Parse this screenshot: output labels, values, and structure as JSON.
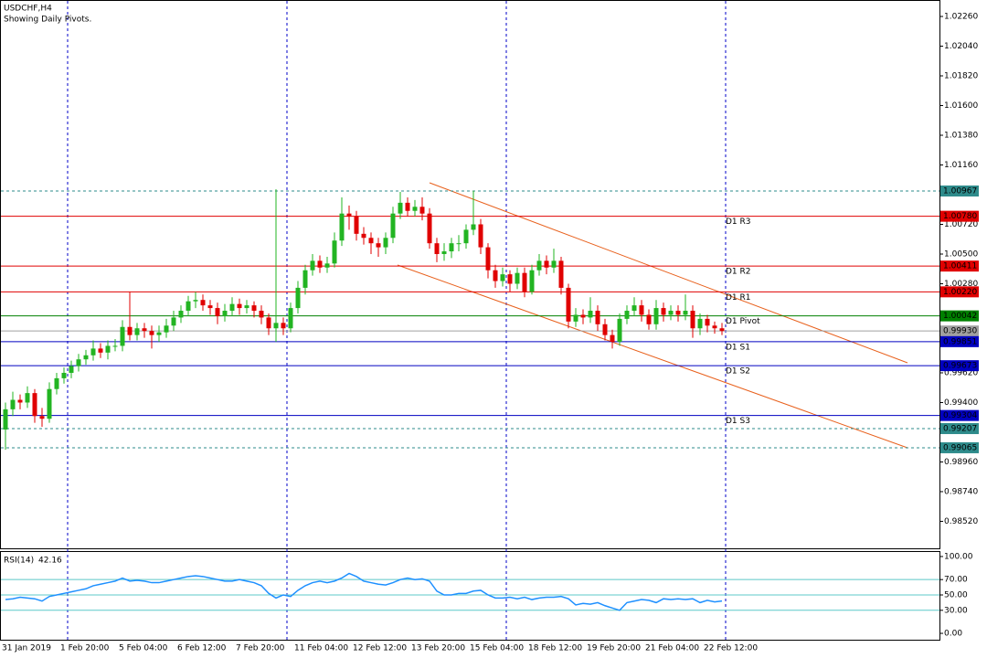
{
  "chart_data": {
    "type": "candlestick",
    "title": "USDCHF,H4",
    "subtitle": "Showing Daily Pivots.",
    "up_color": "#22b422",
    "down_color": "#e00000",
    "categories": [
      "31 Jan 2019",
      null,
      null,
      null,
      null,
      null,
      null,
      null,
      "1 Feb 20:00",
      null,
      null,
      null,
      null,
      null,
      null,
      null,
      "5 Feb 04:00",
      null,
      null,
      null,
      null,
      null,
      null,
      null,
      "6 Feb 12:00",
      null,
      null,
      null,
      null,
      null,
      null,
      null,
      "7 Feb 20:00",
      null,
      null,
      null,
      null,
      null,
      null,
      null,
      "11 Feb 04:00",
      null,
      null,
      null,
      null,
      null,
      null,
      null,
      "12 Feb 12:00",
      null,
      null,
      null,
      null,
      null,
      null,
      null,
      "13 Feb 20:00",
      null,
      null,
      null,
      null,
      null,
      null,
      null,
      "15 Feb 04:00",
      null,
      null,
      null,
      null,
      null,
      null,
      null,
      "18 Feb 12:00",
      null,
      null,
      null,
      null,
      null,
      null,
      null,
      "19 Feb 20:00",
      null,
      null,
      null,
      null,
      null,
      null,
      null,
      "21 Feb 04:00",
      null,
      null,
      null,
      null,
      null,
      null,
      null,
      "22 Feb 12:00",
      null,
      null
    ],
    "open": [
      0.992,
      0.9935,
      0.9942,
      0.994,
      0.9947,
      0.993,
      0.9928,
      0.995,
      0.9958,
      0.9962,
      0.9967,
      0.9972,
      0.9975,
      0.998,
      0.9977,
      0.9982,
      0.9982,
      0.9996,
      0.999,
      0.9995,
      0.9993,
      0.999,
      0.9992,
      0.9997,
      1.0003,
      1.0008,
      1.0015,
      1.0016,
      1.0012,
      1.001,
      1.0004,
      1.0008,
      1.0013,
      1.001,
      1.0012,
      1.0008,
      1.0003,
      0.9995,
      0.9999,
      0.9995,
      1.001,
      1.0025,
      1.0038,
      1.0045,
      1.004,
      1.0043,
      1.006,
      1.008,
      1.0078,
      1.0065,
      1.0062,
      1.0058,
      1.0055,
      1.0062,
      1.008,
      1.0088,
      1.0082,
      1.0085,
      1.008,
      1.0058,
      1.005,
      1.0052,
      1.0058,
      1.0058,
      1.0068,
      1.0072,
      1.0055,
      1.0038,
      1.003,
      1.0035,
      1.0028,
      1.0036,
      1.0022,
      1.0038,
      1.0045,
      1.004,
      1.0045,
      1.0025,
      1.0,
      1.0005,
      1.0003,
      1.0008,
      0.9998,
      0.999,
      0.9985,
      1.0002,
      1.0008,
      1.0012,
      1.0005,
      0.9998,
      1.001,
      1.0005,
      1.0008,
      1.0005,
      1.0008,
      0.9995,
      1.0002,
      0.9997,
      0.9995
    ],
    "high": [
      0.994,
      0.9948,
      0.9946,
      0.9952,
      0.995,
      0.9936,
      0.9955,
      0.9962,
      0.9966,
      0.9971,
      0.9976,
      0.9979,
      0.9986,
      0.9984,
      0.9986,
      0.9987,
      1.0001,
      1.0022,
      0.9999,
      0.9999,
      0.9997,
      0.9997,
      1.0002,
      1.0008,
      1.0012,
      1.0019,
      1.0022,
      1.002,
      1.0016,
      1.0014,
      1.0013,
      1.0018,
      1.0017,
      1.0016,
      1.0015,
      1.0012,
      1.0006,
      1.0098,
      1.0003,
      1.0014,
      1.003,
      1.0042,
      1.005,
      1.0049,
      1.0048,
      1.0066,
      1.0092,
      1.0086,
      1.0082,
      1.007,
      1.0066,
      1.0062,
      1.0066,
      1.0085,
      1.0096,
      1.0092,
      1.009,
      1.0092,
      1.0084,
      1.0062,
      1.0058,
      1.0062,
      1.0064,
      1.0072,
      1.0097,
      1.0076,
      1.0058,
      1.0042,
      1.004,
      1.0038,
      1.004,
      1.004,
      1.0042,
      1.005,
      1.0049,
      1.0054,
      1.0048,
      1.0028,
      1.001,
      1.0009,
      1.0018,
      1.0012,
      1.0002,
      0.9994,
      1.0006,
      1.0012,
      1.0018,
      1.0016,
      1.0009,
      1.0016,
      1.0014,
      1.0012,
      1.0012,
      1.002,
      1.0012,
      1.0006,
      1.0005,
      1.0,
      0.9999
    ],
    "low": [
      0.9905,
      0.993,
      0.9935,
      0.9936,
      0.9925,
      0.9922,
      0.9925,
      0.9946,
      0.9954,
      0.9958,
      0.9963,
      0.9968,
      0.9971,
      0.9973,
      0.9972,
      0.9978,
      0.9978,
      0.9986,
      0.9986,
      0.9988,
      0.998,
      0.9985,
      0.9988,
      0.9993,
      0.9999,
      1.0004,
      1.001,
      1.0008,
      1.0005,
      0.9998,
      1.0,
      1.0004,
      1.0005,
      1.0006,
      1.0003,
      0.9998,
      0.999,
      0.9985,
      0.999,
      0.9992,
      1.0006,
      1.002,
      1.0034,
      1.0036,
      1.0036,
      1.004,
      1.0056,
      1.0068,
      1.006,
      1.0057,
      1.005,
      1.0048,
      1.005,
      1.0058,
      1.0076,
      1.0078,
      1.0078,
      1.0075,
      1.0054,
      1.0044,
      1.0045,
      1.0047,
      1.0052,
      1.0054,
      1.0064,
      1.005,
      1.0032,
      1.0025,
      1.0026,
      1.0022,
      1.0024,
      1.0018,
      1.002,
      1.0034,
      1.0035,
      1.0036,
      1.002,
      0.9995,
      0.9996,
      0.9998,
      0.9999,
      0.9993,
      0.9986,
      0.998,
      0.9982,
      0.9998,
      1.0004,
      1.0,
      0.9994,
      0.9994,
      1.0,
      1.0001,
      1.0,
      1.0001,
      0.9988,
      0.999,
      0.9992,
      0.9991,
      0.999
    ],
    "close": [
      0.9935,
      0.9942,
      0.994,
      0.9947,
      0.993,
      0.9928,
      0.995,
      0.9958,
      0.9962,
      0.9967,
      0.9972,
      0.9975,
      0.998,
      0.9977,
      0.9982,
      0.9982,
      0.9996,
      0.999,
      0.9995,
      0.9993,
      0.999,
      0.9992,
      0.9997,
      1.0003,
      1.0008,
      1.0015,
      1.0016,
      1.0012,
      1.001,
      1.0004,
      1.0008,
      1.0013,
      1.001,
      1.0012,
      1.0008,
      1.0003,
      0.9995,
      0.9999,
      0.9995,
      1.001,
      1.0025,
      1.0038,
      1.0045,
      1.004,
      1.0043,
      1.006,
      1.008,
      1.0078,
      1.0065,
      1.0062,
      1.0058,
      1.0055,
      1.0062,
      1.008,
      1.0088,
      1.0082,
      1.0085,
      1.008,
      1.0058,
      1.005,
      1.0052,
      1.0058,
      1.0058,
      1.0068,
      1.0072,
      1.0055,
      1.0038,
      1.003,
      1.0035,
      1.0028,
      1.0036,
      1.0022,
      1.0038,
      1.0045,
      1.004,
      1.0045,
      1.0025,
      1.0,
      1.0005,
      1.0003,
      1.0008,
      0.9998,
      0.999,
      0.9985,
      1.0002,
      1.0008,
      1.0012,
      1.0005,
      0.9998,
      1.001,
      1.0005,
      1.0008,
      1.0005,
      1.0008,
      0.9995,
      1.0002,
      0.9997,
      0.9995,
      0.9993
    ],
    "ylim": [
      0.9832,
      1.02382
    ],
    "yticks": [
      {
        "value": 1.0226,
        "label": "1.02260"
      },
      {
        "value": 1.0204,
        "label": "1.02040"
      },
      {
        "value": 1.0182,
        "label": "1.01820"
      },
      {
        "value": 1.016,
        "label": "1.01600"
      },
      {
        "value": 1.0138,
        "label": "1.01380"
      },
      {
        "value": 1.0116,
        "label": "1.01160"
      },
      {
        "value": 1.0072,
        "label": "1.00720"
      },
      {
        "value": 1.005,
        "label": "1.00500"
      },
      {
        "value": 1.0028,
        "label": "1.00280"
      },
      {
        "value": 0.9962,
        "label": "0.99620"
      },
      {
        "value": 0.994,
        "label": "0.99400"
      },
      {
        "value": 0.9896,
        "label": "0.98960"
      },
      {
        "value": 0.9874,
        "label": "0.98740"
      },
      {
        "value": 0.9852,
        "label": "0.98520"
      }
    ],
    "levels": [
      {
        "value": 1.00967,
        "label": "1.00967",
        "color": "#2e8b8b",
        "dashed": true
      },
      {
        "value": 1.0078,
        "label": "1.00780",
        "name": "D1 R3",
        "color": "#e00000"
      },
      {
        "value": 1.00411,
        "label": "1.00411",
        "name": "D1 R2",
        "color": "#e00000"
      },
      {
        "value": 1.0022,
        "label": "1.00220",
        "name": "D1 R1",
        "color": "#e00000"
      },
      {
        "value": 1.00042,
        "label": "1.00042",
        "name": "D1 Pivot",
        "color": "#008000"
      },
      {
        "value": 0.9993,
        "label": "0.99930",
        "color": "#a0a0a0"
      },
      {
        "value": 0.99851,
        "label": "0.99851",
        "name": "D1 S1",
        "color": "#0000c0"
      },
      {
        "value": 0.99673,
        "label": "0.99673",
        "name": "D1 S2",
        "color": "#0000c0"
      },
      {
        "value": 0.99304,
        "label": "0.99304",
        "name": "D1 S3",
        "color": "#0000c0"
      },
      {
        "value": 0.99207,
        "label": "0.99207",
        "color": "#2e8b8b",
        "dashed": true
      },
      {
        "value": 0.99065,
        "label": "0.99065",
        "color": "#2e8b8b",
        "dashed": true
      }
    ],
    "rsi": {
      "type": "line",
      "title": "RSI(14)",
      "color": "#1e90ff",
      "values": [
        44,
        45,
        47,
        46,
        45,
        42,
        48,
        50,
        52,
        54,
        56,
        58,
        62,
        64,
        66,
        68,
        72,
        68,
        69,
        68,
        66,
        66,
        68,
        70,
        72,
        74,
        75,
        74,
        72,
        70,
        68,
        68,
        70,
        68,
        66,
        62,
        52,
        46,
        50,
        48,
        56,
        62,
        66,
        68,
        66,
        68,
        72,
        78,
        74,
        68,
        66,
        64,
        63,
        66,
        70,
        72,
        70,
        71,
        68,
        55,
        50,
        50,
        52,
        52,
        55,
        56,
        50,
        46,
        46,
        47,
        45,
        47,
        44,
        46,
        47,
        47,
        48,
        45,
        37,
        39,
        38,
        40,
        36,
        33,
        30,
        40,
        42,
        44,
        43,
        40,
        45,
        44,
        45,
        44,
        45,
        40,
        43,
        41,
        42.16
      ],
      "ylim": [
        -8.3,
        107.1
      ],
      "yticks": [
        {
          "value": 100,
          "label": "100.00"
        },
        {
          "value": 70,
          "label": "70.00"
        },
        {
          "value": 50,
          "label": "50.00"
        },
        {
          "value": 30,
          "label": "30.00"
        },
        {
          "value": 0,
          "label": "0.00"
        }
      ]
    }
  }
}
